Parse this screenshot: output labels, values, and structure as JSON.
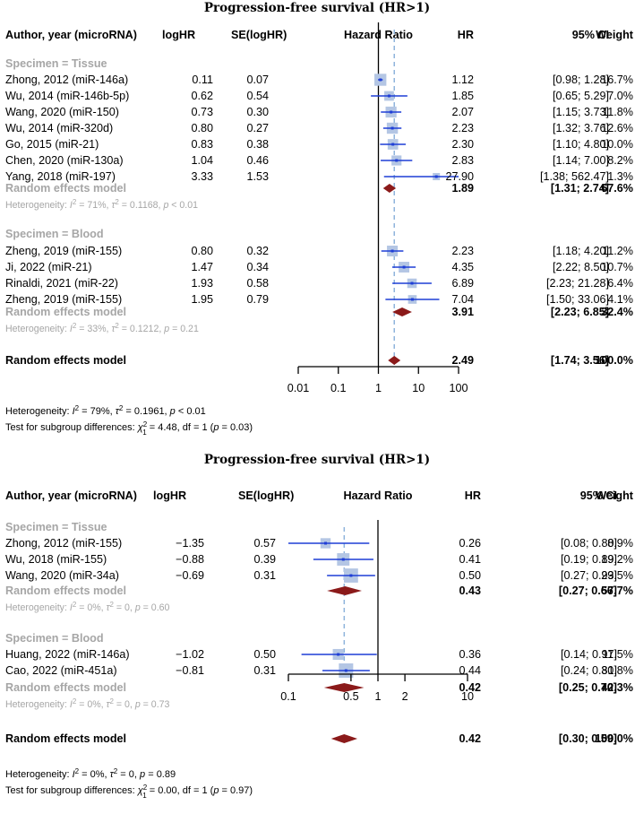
{
  "chart_data": [
    {
      "type": "forest",
      "title": "Progression-free survival (HR>1)",
      "columns": [
        "Author, year (microRNA)",
        "logHR",
        "SE(logHR)",
        "Hazard Ratio",
        "HR",
        "95% CI",
        "Weight"
      ],
      "xscale": "log",
      "xlim": [
        0.01,
        100
      ],
      "xticks": [
        "0.01",
        "0.1",
        "1",
        "10",
        "100"
      ],
      "tick_values": [
        0.01,
        0.1,
        1,
        10,
        100
      ],
      "pooled_hr": 2.49,
      "subgroups": [
        {
          "label": "Specimen = Tissue",
          "studies": [
            {
              "study": "Zhong, 2012 (miR-146a)",
              "logHR": "0.11",
              "se": "0.07",
              "hr": 1.12,
              "lower": 0.98,
              "upper": 1.28,
              "hr_text": "1.12",
              "ci_text": "[0.98; 1.28]",
              "weight_text": "16.7%",
              "weight": 16.7
            },
            {
              "study": "Wu, 2014 (miR-146b-5p)",
              "logHR": "0.62",
              "se": "0.54",
              "hr": 1.85,
              "lower": 0.65,
              "upper": 5.29,
              "hr_text": "1.85",
              "ci_text": "[0.65; 5.29]",
              "weight_text": "7.0%",
              "weight": 7.0
            },
            {
              "study": "Wang, 2020 (miR-150)",
              "logHR": "0.73",
              "se": "0.30",
              "hr": 2.07,
              "lower": 1.15,
              "upper": 3.73,
              "hr_text": "2.07",
              "ci_text": "[1.15; 3.73]",
              "weight_text": "11.8%",
              "weight": 11.8
            },
            {
              "study": "Wu, 2014 (miR-320d)",
              "logHR": "0.80",
              "se": "0.27",
              "hr": 2.23,
              "lower": 1.32,
              "upper": 3.76,
              "hr_text": "2.23",
              "ci_text": "[1.32; 3.76]",
              "weight_text": "12.6%",
              "weight": 12.6
            },
            {
              "study": "Go, 2015 (miR-21)",
              "logHR": "0.83",
              "se": "0.38",
              "hr": 2.3,
              "lower": 1.1,
              "upper": 4.8,
              "hr_text": "2.30",
              "ci_text": "[1.10; 4.80]",
              "weight_text": "10.0%",
              "weight": 10.0
            },
            {
              "study": "Chen, 2020 (miR-130a)",
              "logHR": "1.04",
              "se": "0.46",
              "hr": 2.83,
              "lower": 1.14,
              "upper": 7.0,
              "hr_text": "2.83",
              "ci_text": "[1.14; 7.00]",
              "weight_text": "8.2%",
              "weight": 8.2
            },
            {
              "study": "Yang, 2018 (miR-197)",
              "logHR": "3.33",
              "se": "1.53",
              "hr": 27.9,
              "lower": 1.38,
              "upper": 562.47,
              "hr_text": "27.90",
              "ci_text": "[1.38; 562.47]",
              "weight_text": "1.3%",
              "weight": 1.3
            }
          ],
          "model": {
            "label": "Random effects model",
            "hr": 1.89,
            "lower": 1.31,
            "upper": 2.74,
            "hr_text": "1.89",
            "ci_text": "[1.31; 2.74]",
            "weight_text": "67.6%"
          },
          "heterogeneity": {
            "prefix": "Heterogeneity: ",
            "i2": "I",
            "i2_text": " = 71%, ",
            "tau": "τ",
            "tau_text": " = 0.1168, ",
            "p": "p",
            "p_text": " < 0.01"
          }
        },
        {
          "label": "Specimen = Blood",
          "studies": [
            {
              "study": "Zheng, 2019 (miR-155)",
              "logHR": "0.80",
              "se": "0.32",
              "hr": 2.23,
              "lower": 1.18,
              "upper": 4.2,
              "hr_text": "2.23",
              "ci_text": "[1.18; 4.20]",
              "weight_text": "11.2%",
              "weight": 11.2
            },
            {
              "study": "Ji, 2022 (miR-21)",
              "logHR": "1.47",
              "se": "0.34",
              "hr": 4.35,
              "lower": 2.22,
              "upper": 8.5,
              "hr_text": "4.35",
              "ci_text": "[2.22; 8.50]",
              "weight_text": "10.7%",
              "weight": 10.7
            },
            {
              "study": "Rinaldi, 2021 (miR-22)",
              "logHR": "1.93",
              "se": "0.58",
              "hr": 6.89,
              "lower": 2.23,
              "upper": 21.28,
              "hr_text": "6.89",
              "ci_text": "[2.23; 21.28]",
              "weight_text": "6.4%",
              "weight": 6.4
            },
            {
              "study": "Zheng, 2019 (miR-155)",
              "logHR": "1.95",
              "se": "0.79",
              "hr": 7.04,
              "lower": 1.5,
              "upper": 33.06,
              "hr_text": "7.04",
              "ci_text": "[1.50; 33.06]",
              "weight_text": "4.1%",
              "weight": 4.1
            }
          ],
          "model": {
            "label": "Random effects model",
            "hr": 3.91,
            "lower": 2.23,
            "upper": 6.85,
            "hr_text": "3.91",
            "ci_text": "[2.23; 6.85]",
            "weight_text": "32.4%"
          },
          "heterogeneity": {
            "prefix": "Heterogeneity: ",
            "i2": "I",
            "i2_text": " = 33%, ",
            "tau": "τ",
            "tau_text": " = 0.1212, ",
            "p": "p",
            "p_text": " = 0.21"
          }
        }
      ],
      "overall": {
        "label": "Random effects model",
        "hr": 2.49,
        "lower": 1.74,
        "upper": 3.56,
        "hr_text": "2.49",
        "ci_text": "[1.74; 3.56]",
        "weight_text": "100.0%"
      },
      "footer_heterogeneity": {
        "prefix": "Heterogeneity: ",
        "i2": "I",
        "i2_text": " = 79%, ",
        "tau": "τ",
        "tau_text": " = 0.1961, ",
        "p": "p",
        "p_text": " < 0.01"
      },
      "footer_test": {
        "prefix": "Test for subgroup differences: ",
        "chi": "χ",
        "chi_sub": "1",
        "chi_text": " = 4.48, df = 1 (",
        "p": "p",
        "p_text": " = 0.03)"
      }
    },
    {
      "type": "forest",
      "title": "Progression-free survival (HR>1)",
      "columns": [
        "Author, year (microRNA)",
        "logHR",
        "SE(logHR)",
        "Hazard Ratio",
        "HR",
        "95% CI",
        "Weight"
      ],
      "xscale": "log",
      "xlim": [
        0.1,
        10
      ],
      "xticks": [
        "0.1",
        "0.5",
        "1",
        "2",
        "10"
      ],
      "tick_values": [
        0.1,
        0.5,
        1,
        2,
        10
      ],
      "pooled_hr": 0.42,
      "subgroups": [
        {
          "label": "Specimen = Tissue",
          "studies": [
            {
              "study": "Zhong, 2012 (miR-155)",
              "logHR": "−1.35",
              "se": "0.57",
              "hr": 0.26,
              "lower": 0.08,
              "upper": 0.8,
              "hr_text": "0.26",
              "ci_text": "[0.08; 0.80]",
              "weight_text": "8.9%",
              "weight": 8.9
            },
            {
              "study": "Wu, 2018 (miR-155)",
              "logHR": "−0.88",
              "se": "0.39",
              "hr": 0.41,
              "lower": 0.19,
              "upper": 0.89,
              "hr_text": "0.41",
              "ci_text": "[0.19; 0.89]",
              "weight_text": "19.2%",
              "weight": 19.2
            },
            {
              "study": "Wang, 2020 (miR-34a)",
              "logHR": "−0.69",
              "se": "0.31",
              "hr": 0.5,
              "lower": 0.27,
              "upper": 0.93,
              "hr_text": "0.50",
              "ci_text": "[0.27; 0.93]",
              "weight_text": "29.5%",
              "weight": 29.5
            }
          ],
          "model": {
            "label": "Random effects model",
            "hr": 0.43,
            "lower": 0.27,
            "upper": 0.66,
            "hr_text": "0.43",
            "ci_text": "[0.27; 0.66]",
            "weight_text": "57.7%"
          },
          "heterogeneity": {
            "prefix": "Heterogeneity: ",
            "i2": "I",
            "i2_text": " = 0%, ",
            "tau": "τ",
            "tau_text": " = 0, ",
            "p": "p",
            "p_text": " = 0.60"
          }
        },
        {
          "label": "Specimen = Blood",
          "studies": [
            {
              "study": "Huang, 2022 (miR-146a)",
              "logHR": "−1.02",
              "se": "0.50",
              "hr": 0.36,
              "lower": 0.14,
              "upper": 0.97,
              "hr_text": "0.36",
              "ci_text": "[0.14; 0.97]",
              "weight_text": "11.5%",
              "weight": 11.5
            },
            {
              "study": "Cao, 2022 (miR-451a)",
              "logHR": "−0.81",
              "se": "0.31",
              "hr": 0.44,
              "lower": 0.24,
              "upper": 0.81,
              "hr_text": "0.44",
              "ci_text": "[0.24; 0.81]",
              "weight_text": "30.8%",
              "weight": 30.8
            }
          ],
          "model": {
            "label": "Random effects model",
            "hr": 0.42,
            "lower": 0.25,
            "upper": 0.7,
            "hr_text": "0.42",
            "ci_text": "[0.25; 0.70]",
            "weight_text": "42.3%"
          },
          "heterogeneity": {
            "prefix": "Heterogeneity: ",
            "i2": "I",
            "i2_text": " = 0%, ",
            "tau": "τ",
            "tau_text": " = 0, ",
            "p": "p",
            "p_text": " = 0.73"
          }
        }
      ],
      "overall": {
        "label": "Random effects model",
        "hr": 0.42,
        "lower": 0.3,
        "upper": 0.59,
        "hr_text": "0.42",
        "ci_text": "[0.30; 0.59]",
        "weight_text": "100.0%"
      },
      "footer_heterogeneity": {
        "prefix": "Heterogeneity: ",
        "i2": "I",
        "i2_text": " = 0%, ",
        "tau": "τ",
        "tau_text": " = 0, ",
        "p": "p",
        "p_text": " = 0.89"
      },
      "footer_test": {
        "prefix": "Test for subgroup differences: ",
        "chi": "χ",
        "chi_sub": "1",
        "chi_text": " = 0.00, df = 1 (",
        "p": "p",
        "p_text": " = 0.97)"
      }
    }
  ]
}
